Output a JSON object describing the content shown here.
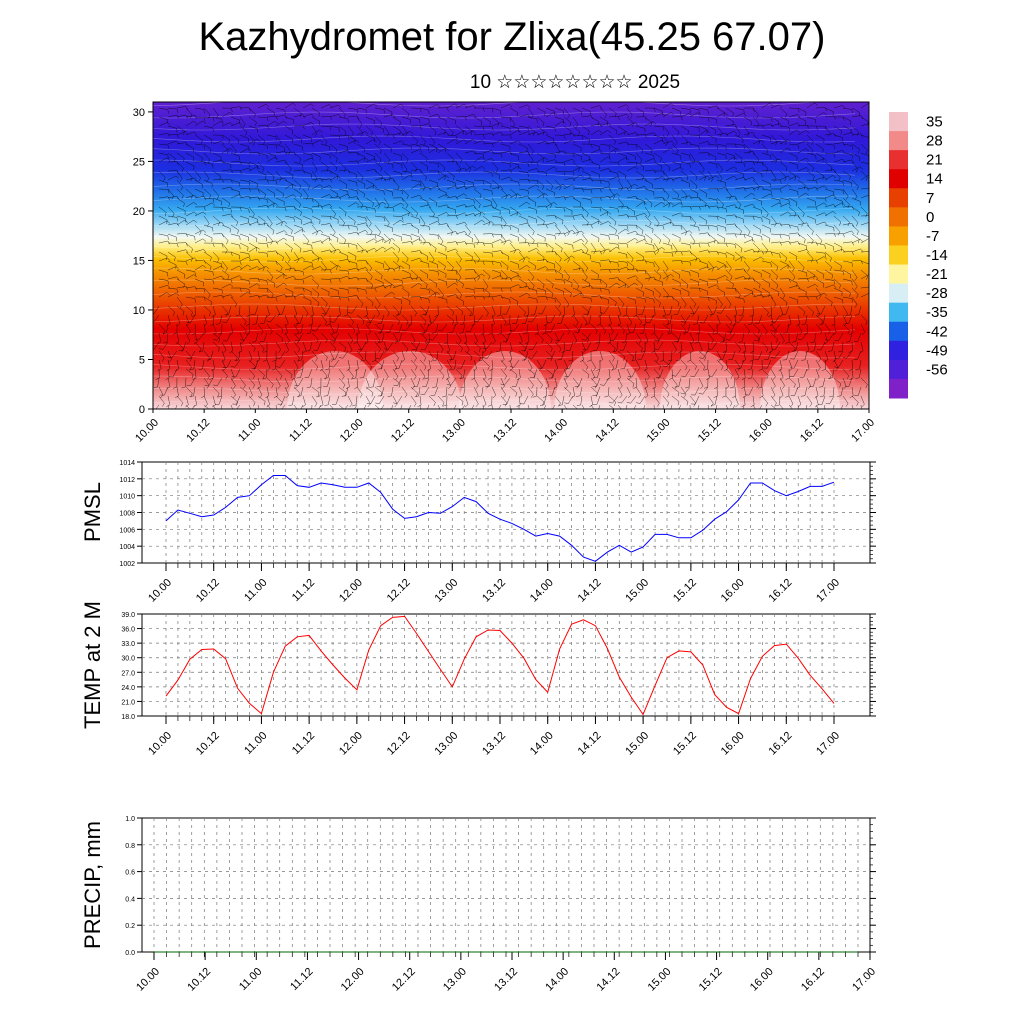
{
  "title": "Kazhydromet for Zlixa(45.25 67.07)",
  "subtitle": "10 ☆☆☆☆☆☆☆☆ 2025",
  "chart_data": [
    {
      "type": "heatmap",
      "description_of_field": "vertical cross-section with wind barbs",
      "x_tick_labels": [
        "10.00",
        "10.12",
        "11.00",
        "11.12",
        "12.00",
        "12.12",
        "13.00",
        "13.12",
        "14.00",
        "14.12",
        "15.00",
        "15.12",
        "16.00",
        "16.12",
        "17.00"
      ],
      "y_tick_labels": [
        "0",
        "5",
        "10",
        "15",
        "20",
        "25",
        "30"
      ],
      "ylim": [
        0,
        31
      ],
      "colorbar_labels": [
        "35",
        "28",
        "21",
        "14",
        "7",
        "0",
        "-7",
        "-14",
        "-21",
        "-28",
        "-35",
        "-42",
        "-49",
        "-56"
      ],
      "colorbar_colors": [
        "#f3c0c8",
        "#f28a8a",
        "#e83030",
        "#e00000",
        "#e84000",
        "#f07000",
        "#f8a000",
        "#fcd020",
        "#fff5a0",
        "#d8eef5",
        "#40b8f0",
        "#1860e8",
        "#3020e0",
        "#5020d8",
        "#8020c8"
      ]
    },
    {
      "type": "line",
      "ylabel": "PMSL",
      "x_tick_labels": [
        "10.00",
        "10.12",
        "11.00",
        "11.12",
        "12.00",
        "12.12",
        "13.00",
        "13.12",
        "14.00",
        "14.12",
        "15.00",
        "15.12",
        "16.00",
        "16.12",
        "17.00"
      ],
      "y_tick_labels": [
        "1002",
        "1004",
        "1006",
        "1008",
        "1010",
        "1012",
        "1014"
      ],
      "ylim": [
        1002,
        1014
      ],
      "grid": true,
      "color": "#0000ff",
      "values": [
        1007.0,
        1008.3,
        1007.9,
        1007.5,
        1007.7,
        1008.6,
        1009.8,
        1010.0,
        1011.3,
        1012.4,
        1012.4,
        1011.2,
        1011.0,
        1011.5,
        1011.3,
        1011.0,
        1011.0,
        1011.5,
        1010.4,
        1008.4,
        1007.3,
        1007.5,
        1008.0,
        1007.9,
        1008.7,
        1009.8,
        1009.3,
        1007.9,
        1007.2,
        1006.7,
        1006.0,
        1005.2,
        1005.5,
        1005.2,
        1004.1,
        1002.7,
        1002.2,
        1003.3,
        1004.1,
        1003.3,
        1003.9,
        1005.4,
        1005.4,
        1005.0,
        1005.0,
        1005.9,
        1007.2,
        1008.1,
        1009.5,
        1011.5,
        1011.5,
        1010.6,
        1010.0,
        1010.5,
        1011.1,
        1011.1,
        1011.6
      ]
    },
    {
      "type": "line",
      "ylabel": "TEMP at 2 M",
      "x_tick_labels": [
        "10.00",
        "10.12",
        "11.00",
        "11.12",
        "12.00",
        "12.12",
        "13.00",
        "13.12",
        "14.00",
        "14.12",
        "15.00",
        "15.12",
        "16.00",
        "16.12",
        "17.00"
      ],
      "y_tick_labels": [
        "18.0",
        "21.0",
        "24.0",
        "27.0",
        "30.0",
        "33.0",
        "36.0",
        "39.0"
      ],
      "ylim": [
        18,
        39
      ],
      "grid": true,
      "color": "#ff0000",
      "values": [
        22.1,
        25.4,
        29.7,
        31.7,
        31.8,
        29.8,
        23.7,
        20.6,
        18.5,
        27.0,
        32.4,
        34.3,
        34.6,
        31.4,
        28.5,
        25.8,
        23.4,
        31.6,
        36.6,
        38.3,
        38.5,
        35.0,
        31.3,
        27.6,
        24.0,
        29.7,
        34.3,
        35.7,
        35.6,
        33.0,
        29.9,
        25.5,
        22.9,
        31.8,
        36.9,
        37.8,
        36.6,
        31.9,
        26.0,
        21.9,
        18.3,
        24.3,
        30.0,
        31.4,
        31.2,
        28.5,
        22.4,
        19.8,
        18.5,
        25.7,
        30.3,
        32.5,
        32.8,
        29.9,
        26.4,
        23.6,
        20.6
      ]
    },
    {
      "type": "line",
      "ylabel": "PRECIP, mm",
      "x_tick_labels": [
        "10.00",
        "10.12",
        "11.00",
        "11.12",
        "12.00",
        "12.12",
        "13.00",
        "13.12",
        "14.00",
        "14.12",
        "15.00",
        "15.12",
        "16.00",
        "16.12",
        "17.00"
      ],
      "y_tick_labels": [
        "0.0",
        "0.2",
        "0.4",
        "0.6",
        "0.8",
        "1.0"
      ],
      "ylim": [
        0,
        1
      ],
      "grid": true,
      "color": "#006400",
      "values": [
        0,
        0,
        0,
        0,
        0,
        0,
        0,
        0,
        0,
        0,
        0,
        0,
        0,
        0,
        0,
        0,
        0,
        0,
        0,
        0,
        0,
        0,
        0,
        0,
        0,
        0,
        0,
        0,
        0,
        0,
        0,
        0,
        0,
        0,
        0,
        0,
        0,
        0,
        0,
        0,
        0,
        0,
        0,
        0,
        0,
        0,
        0,
        0,
        0,
        0,
        0,
        0,
        0,
        0,
        0,
        0,
        0
      ]
    }
  ]
}
